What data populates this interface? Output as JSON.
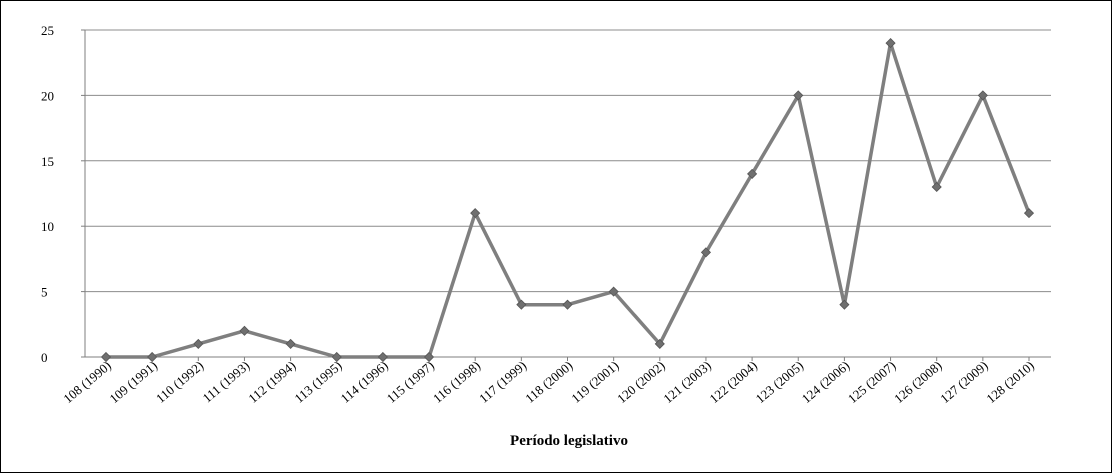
{
  "chart_data": {
    "type": "line",
    "title": "",
    "xlabel": "Período legislativo",
    "ylabel": "",
    "categories": [
      "108 (1990)",
      "109 (1991)",
      "110 (1992)",
      "111 (1993)",
      "112 (1994)",
      "113 (1995)",
      "114 (1996)",
      "115 (1997)",
      "116 (1998)",
      "117 (1999)",
      "118 (2000)",
      "119 (2001)",
      "120 (2002)",
      "121 (2003)",
      "122 (2004)",
      "123 (2005)",
      "124 (2006)",
      "125 (2007)",
      "126 (2008)",
      "127 (2009)",
      "128 (2010)"
    ],
    "values": [
      0,
      0,
      1,
      2,
      1,
      0,
      0,
      0,
      11,
      4,
      4,
      5,
      1,
      8,
      14,
      20,
      4,
      24,
      13,
      20,
      11
    ],
    "ylim": [
      0,
      25
    ],
    "yticks": [
      0,
      5,
      10,
      15,
      20,
      25
    ],
    "grid": true,
    "legend": "none",
    "line_color": "#7f7f7f",
    "marker_color": "#6f6f6f",
    "grid_color": "#8c8c8c"
  }
}
